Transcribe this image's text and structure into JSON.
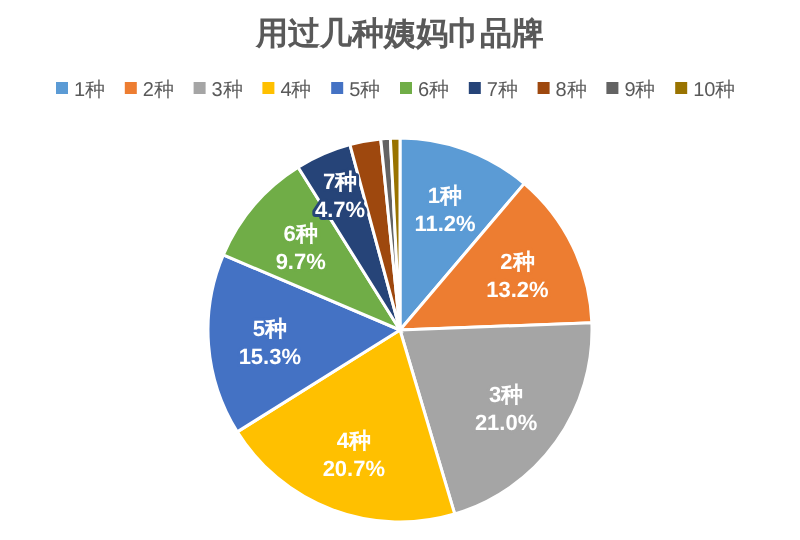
{
  "chart_data": {
    "type": "pie",
    "title": "用过几种姨妈巾品牌",
    "categories": [
      "1种",
      "2种",
      "3种",
      "4种",
      "5种",
      "6种",
      "7种",
      "8种",
      "9种",
      "10种"
    ],
    "values": [
      11.2,
      13.2,
      21.0,
      20.7,
      15.3,
      9.7,
      4.7,
      2.6,
      0.8,
      0.8
    ],
    "value_labels": [
      "11.2%",
      "13.2%",
      "21.0%",
      "20.7%",
      "15.3%",
      "9.7%",
      "4.7%",
      null,
      null,
      null
    ],
    "colors": [
      "#5b9bd5",
      "#ed7d31",
      "#a5a5a5",
      "#ffc000",
      "#4472c4",
      "#70ad47",
      "#264478",
      "#9e480e",
      "#636363",
      "#997300"
    ],
    "legend": "top"
  }
}
